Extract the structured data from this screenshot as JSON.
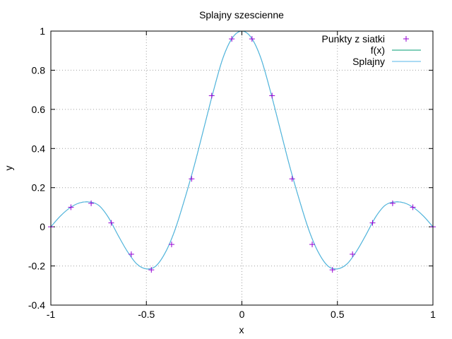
{
  "chart_data": {
    "type": "line",
    "title": "Splajny szescienne",
    "xlabel": "x",
    "ylabel": "y",
    "xlim": [
      -1,
      1
    ],
    "ylim": [
      -0.4,
      1
    ],
    "xticks": [
      "-1",
      "-0.5",
      "0",
      "0.5",
      "1"
    ],
    "yticks": [
      "-0.4",
      "-0.2",
      "0",
      "0.2",
      "0.4",
      "0.6",
      "0.8",
      "1"
    ],
    "xtick_values": [
      -1,
      -0.5,
      0,
      0.5,
      1
    ],
    "ytick_values": [
      -0.4,
      -0.2,
      0,
      0.2,
      0.4,
      0.6,
      0.8,
      1
    ],
    "grid": true,
    "legend_position": "top-right",
    "series": [
      {
        "name": "Punkty z siatki",
        "style": "points",
        "marker": "+",
        "color": "#9400d3",
        "x": [
          -1,
          -0.895,
          -0.789,
          -0.684,
          -0.579,
          -0.474,
          -0.368,
          -0.263,
          -0.158,
          -0.053,
          0.053,
          0.158,
          0.263,
          0.368,
          0.474,
          0.579,
          0.684,
          0.789,
          0.895,
          1
        ],
        "y": [
          0,
          0.1,
          0.12,
          0.02,
          -0.14,
          -0.22,
          -0.09,
          0.245,
          0.67,
          0.96,
          0.96,
          0.67,
          0.245,
          -0.09,
          -0.22,
          -0.14,
          0.02,
          0.12,
          0.1,
          0
        ]
      },
      {
        "name": "f(x)",
        "style": "line",
        "color": "#009e73",
        "x": [
          -1,
          -0.95,
          -0.9,
          -0.85,
          -0.8,
          -0.75,
          -0.7,
          -0.65,
          -0.6,
          -0.55,
          -0.5,
          -0.45,
          -0.4,
          -0.35,
          -0.3,
          -0.25,
          -0.2,
          -0.15,
          -0.1,
          -0.05,
          0,
          0.05,
          0.1,
          0.15,
          0.2,
          0.25,
          0.3,
          0.35,
          0.4,
          0.45,
          0.5,
          0.55,
          0.6,
          0.65,
          0.7,
          0.75,
          0.8,
          0.85,
          0.9,
          0.95,
          1
        ],
        "y": [
          0,
          0.055,
          0.097,
          0.122,
          0.127,
          0.11,
          0.05,
          -0.04,
          -0.125,
          -0.19,
          -0.215,
          -0.2,
          -0.13,
          -0.015,
          0.14,
          0.31,
          0.5,
          0.69,
          0.86,
          0.965,
          1,
          0.965,
          0.86,
          0.69,
          0.5,
          0.31,
          0.14,
          -0.015,
          -0.13,
          -0.2,
          -0.215,
          -0.19,
          -0.125,
          -0.04,
          0.05,
          0.11,
          0.127,
          0.122,
          0.097,
          0.055,
          0
        ]
      },
      {
        "name": "Splajny",
        "style": "line",
        "color": "#56b4e9",
        "x": [
          -1,
          -0.95,
          -0.9,
          -0.85,
          -0.8,
          -0.75,
          -0.7,
          -0.65,
          -0.6,
          -0.55,
          -0.5,
          -0.45,
          -0.4,
          -0.35,
          -0.3,
          -0.25,
          -0.2,
          -0.15,
          -0.1,
          -0.05,
          0,
          0.05,
          0.1,
          0.15,
          0.2,
          0.25,
          0.3,
          0.35,
          0.4,
          0.45,
          0.5,
          0.55,
          0.6,
          0.65,
          0.7,
          0.75,
          0.8,
          0.85,
          0.9,
          0.95,
          1
        ],
        "y": [
          0,
          0.055,
          0.097,
          0.122,
          0.127,
          0.11,
          0.05,
          -0.04,
          -0.125,
          -0.19,
          -0.215,
          -0.2,
          -0.13,
          -0.015,
          0.14,
          0.31,
          0.5,
          0.69,
          0.86,
          0.965,
          1,
          0.965,
          0.86,
          0.69,
          0.5,
          0.31,
          0.14,
          -0.015,
          -0.13,
          -0.2,
          -0.215,
          -0.19,
          -0.125,
          -0.04,
          0.05,
          0.11,
          0.127,
          0.122,
          0.097,
          0.055,
          0
        ]
      }
    ]
  }
}
